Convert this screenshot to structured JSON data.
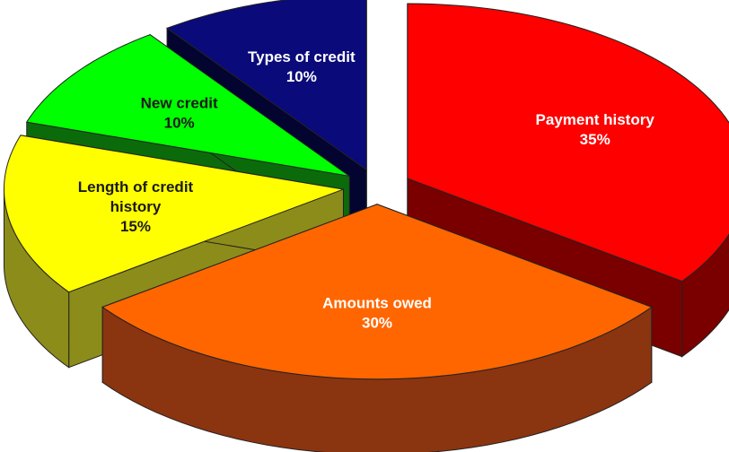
{
  "chart_data": {
    "type": "pie",
    "style": "3d-exploded",
    "title": "",
    "slices": [
      {
        "label": [
          "Payment history"
        ],
        "value": 35,
        "value_label": "35%",
        "color": "#ff0000",
        "side_color": "#7a0000",
        "label_color": "#ffffff"
      },
      {
        "label": [
          "Amounts owed"
        ],
        "value": 30,
        "value_label": "30%",
        "color": "#ff6600",
        "side_color": "#8b3410",
        "label_color": "#ffffff"
      },
      {
        "label": [
          "Length of credit",
          "history"
        ],
        "value": 15,
        "value_label": "15%",
        "color": "#ffff00",
        "side_color": "#8c8c1a",
        "label_color": "#1a1a1a"
      },
      {
        "label": [
          "New credit"
        ],
        "value": 10,
        "value_label": "10%",
        "color": "#00ff00",
        "side_color": "#0b6b0b",
        "label_color": "#1a1a1a"
      },
      {
        "label": [
          "Types of credit"
        ],
        "value": 10,
        "value_label": "10%",
        "color": "#0a0a7a",
        "side_color": "#040430",
        "label_color": "#ffffff"
      }
    ]
  }
}
